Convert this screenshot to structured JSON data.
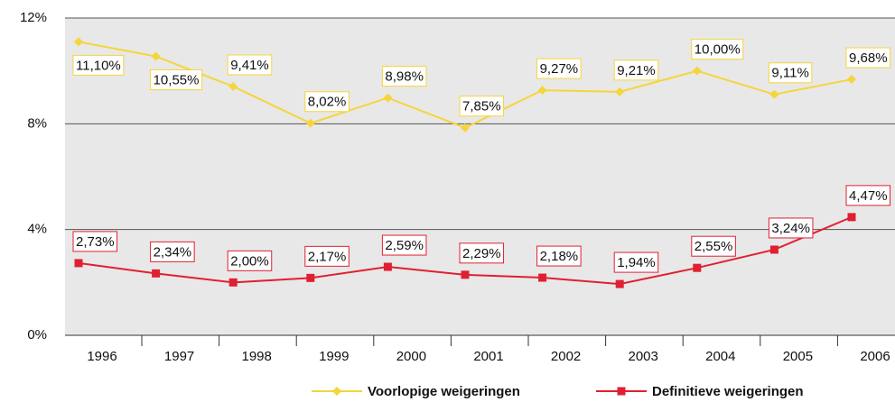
{
  "chart_data": {
    "type": "line",
    "categories": [
      "1996",
      "1997",
      "1998",
      "1999",
      "2000",
      "2001",
      "2002",
      "2003",
      "2004",
      "2005",
      "2006"
    ],
    "series": [
      {
        "name": "Voorlopige weigeringen",
        "color": "#f5d53a",
        "marker": "diamond",
        "values": [
          11.1,
          10.55,
          9.41,
          8.02,
          8.98,
          7.85,
          9.27,
          9.21,
          10.0,
          9.11,
          9.68
        ],
        "value_labels": [
          "11,10%",
          "10,55%",
          "9,41%",
          "8,02%",
          "8,98%",
          "7,85%",
          "9,27%",
          "9,21%",
          "10,00%",
          "9,11%",
          "9,68%"
        ]
      },
      {
        "name": "Definitieve weigeringen",
        "color": "#e02030",
        "marker": "square",
        "values": [
          2.73,
          2.34,
          2.0,
          2.17,
          2.59,
          2.29,
          2.18,
          1.94,
          2.55,
          3.24,
          4.47
        ],
        "value_labels": [
          "2,73%",
          "2,34%",
          "2,00%",
          "2,17%",
          "2,59%",
          "2,29%",
          "2,18%",
          "1,94%",
          "2,55%",
          "3,24%",
          "4,47%"
        ]
      }
    ],
    "ylim": [
      0,
      12
    ],
    "yticks": [
      {
        "value": 0,
        "label": "0%"
      },
      {
        "value": 4,
        "label": "4%"
      },
      {
        "value": 8,
        "label": "8%"
      },
      {
        "value": 12,
        "label": "12%"
      }
    ],
    "grid": true
  }
}
